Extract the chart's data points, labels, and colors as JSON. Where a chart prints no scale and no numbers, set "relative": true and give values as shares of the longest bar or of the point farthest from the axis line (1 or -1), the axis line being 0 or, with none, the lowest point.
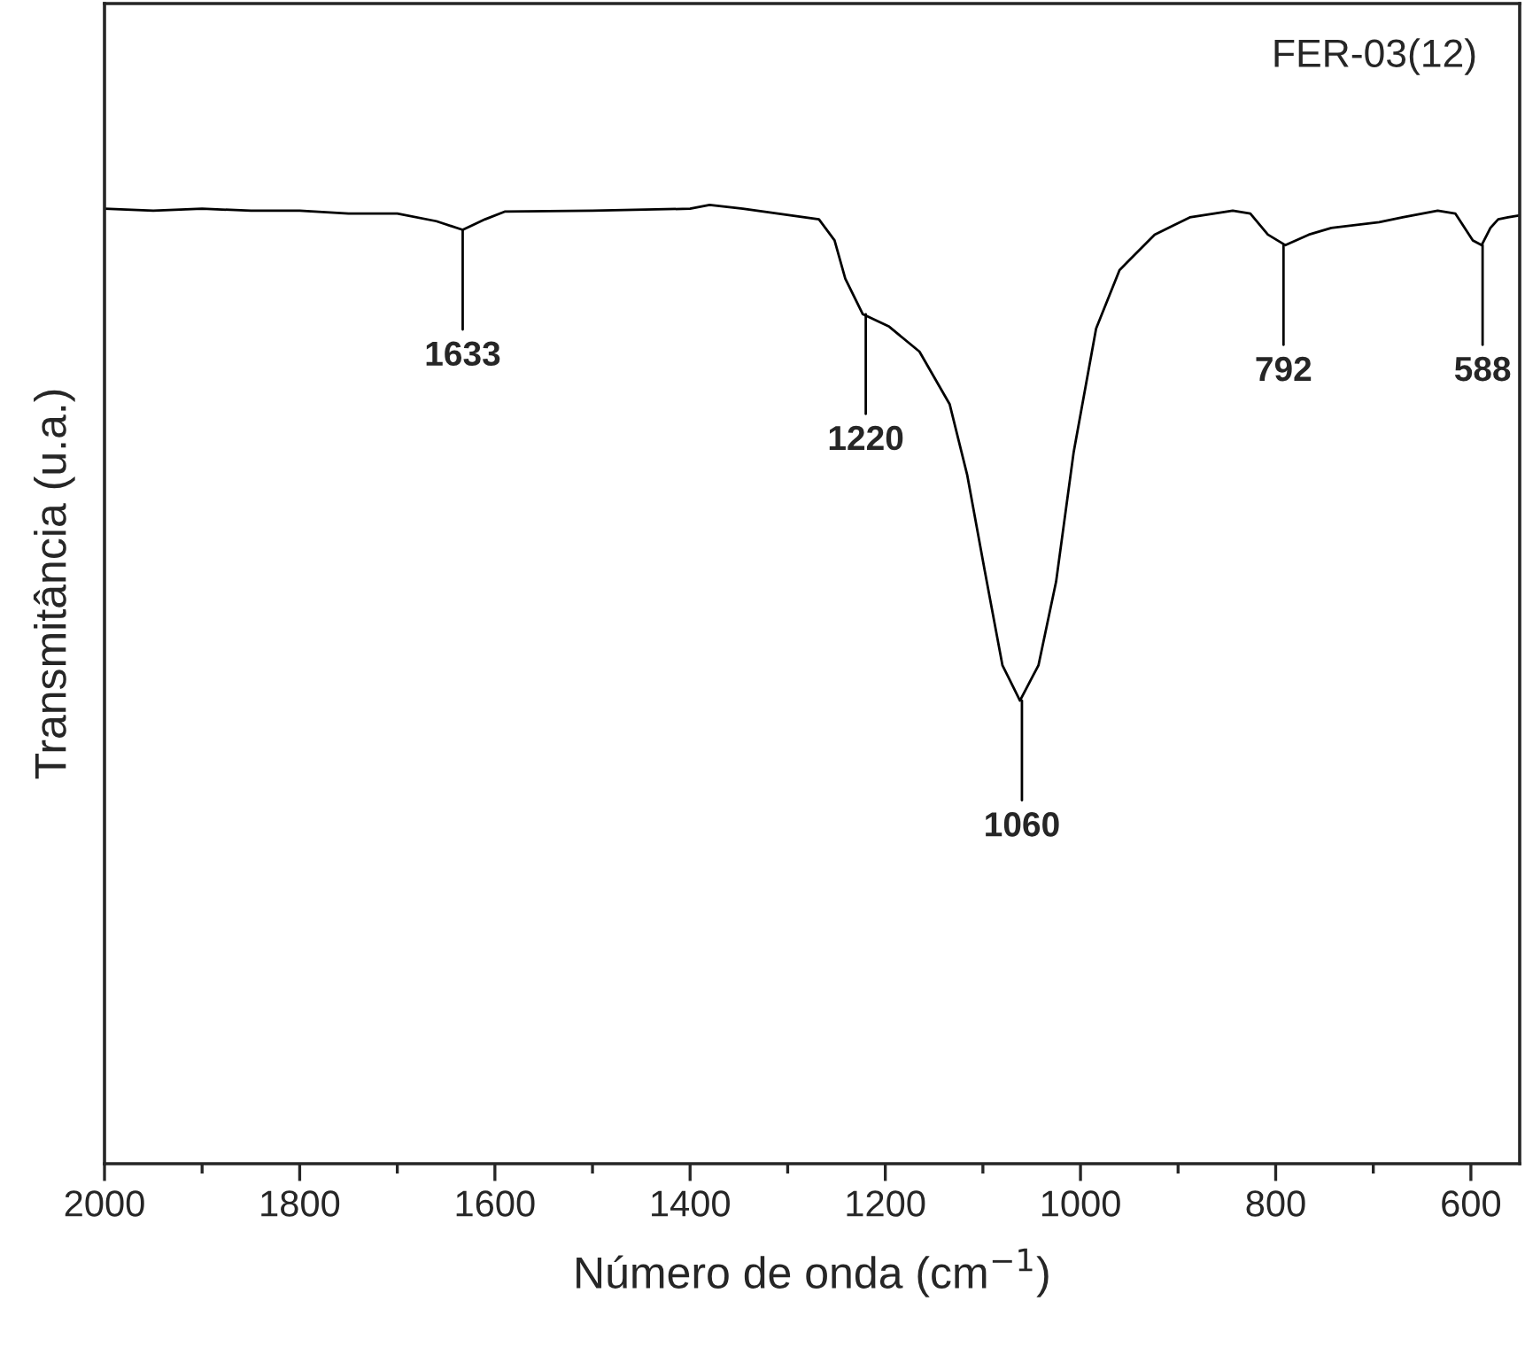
{
  "chart_data": {
    "type": "line",
    "relative": true,
    "xlabel": "Número de onda (cm$^{−1}$)",
    "ylabel": "Transmitância (u.a.)",
    "xlim": [
      2000,
      550
    ],
    "xticks": [
      2000,
      {
        "value": 1900,
        "label": null
      },
      1800,
      {
        "value": 1700,
        "label": null
      },
      1600,
      {
        "value": 1500,
        "label": null
      },
      1400,
      {
        "value": 1300,
        "label": null
      },
      1200,
      {
        "value": 1100,
        "label": null
      },
      1000,
      {
        "value": 900,
        "label": null
      },
      800,
      {
        "value": 700,
        "label": null
      },
      600
    ],
    "grid": false,
    "legend": false,
    "tick_labels": "x",
    "series": [
      {
        "color": "#000000",
        "x": [
          2000,
          1950,
          1900,
          1850,
          1800,
          1750,
          1700,
          1660,
          1633,
          1610,
          1590,
          1500,
          1400,
          1380,
          1346,
          1268,
          1252,
          1241,
          1223,
          1196,
          1165,
          1134,
          1116,
          1098,
          1080,
          1062,
          1043,
          1025,
          1007,
          984,
          960,
          924,
          888,
          844,
          826,
          808,
          790,
          766,
          743,
          694,
          670,
          634,
          616,
          598,
          589,
          580,
          572,
          562,
          551
        ],
        "values": [
          0.996,
          0.994,
          0.996,
          0.994,
          0.994,
          0.991,
          0.991,
          0.983,
          0.974,
          0.985,
          0.993,
          0.994,
          0.996,
          1.0,
          0.996,
          0.985,
          0.963,
          0.923,
          0.886,
          0.873,
          0.847,
          0.792,
          0.718,
          0.618,
          0.52,
          0.483,
          0.52,
          0.607,
          0.742,
          0.871,
          0.932,
          0.969,
          0.987,
          0.994,
          0.991,
          0.969,
          0.958,
          0.969,
          0.976,
          0.982,
          0.987,
          0.994,
          0.991,
          0.963,
          0.958,
          0.976,
          0.985,
          0.987,
          0.989
        ]
      }
    ],
    "annotations": [
      {
        "text": "1633",
        "x": 1633,
        "y": 0.974
      },
      {
        "text": "1220",
        "x": 1220,
        "y": 0.886
      },
      {
        "text": "1060",
        "x": 1060,
        "y": 0.483
      },
      {
        "text": "792",
        "x": 792,
        "y": 0.958
      },
      {
        "text": "588",
        "x": 588,
        "y": 0.958
      },
      "FER-03(12)"
    ]
  }
}
